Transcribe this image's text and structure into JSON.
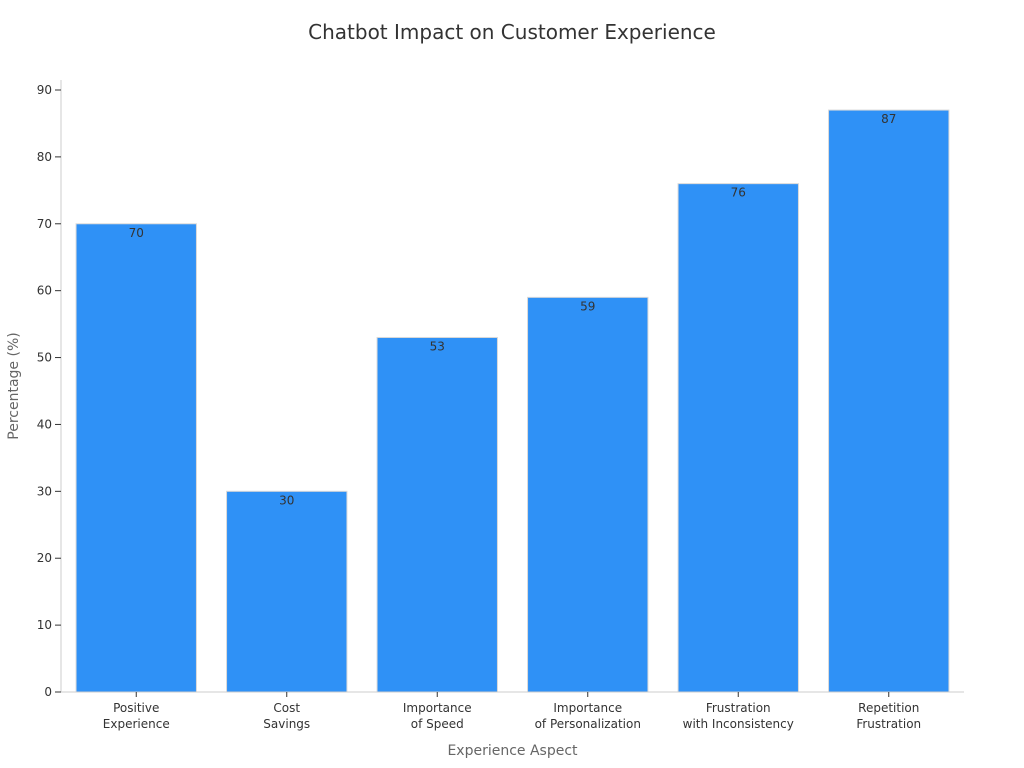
{
  "chart_data": {
    "type": "bar",
    "title": "Chatbot Impact on Customer Experience",
    "xlabel": "Experience Aspect",
    "ylabel": "Percentage (%)",
    "categories": [
      [
        "Positive",
        "Experience"
      ],
      [
        "Cost",
        "Savings"
      ],
      [
        "Importance",
        "of Speed"
      ],
      [
        "Importance",
        "of Personalization"
      ],
      [
        "Frustration",
        "with Inconsistency"
      ],
      [
        "Repetition",
        "Frustration"
      ]
    ],
    "values": [
      70,
      30,
      53,
      59,
      76,
      87
    ],
    "ylim": [
      0,
      90
    ],
    "yticks": [
      0,
      10,
      20,
      30,
      40,
      50,
      60,
      70,
      80,
      90
    ],
    "bar_color": "#2f91f6",
    "grid": false,
    "legend": "none"
  }
}
